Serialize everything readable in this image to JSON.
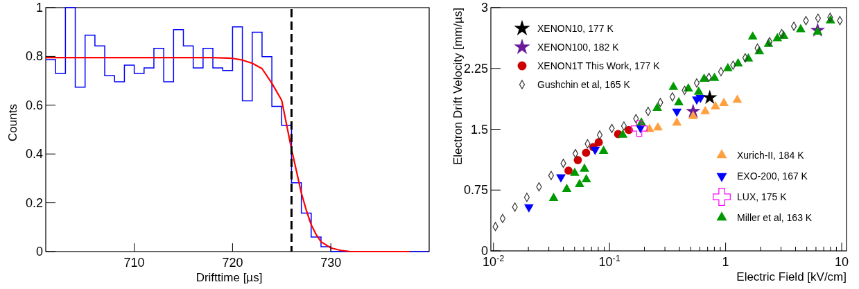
{
  "chart_data": [
    {
      "type": "histogram",
      "xlabel": "Drifttime [µs]",
      "ylabel": "Counts",
      "color": "#0000ff",
      "bins": [
        701,
        702,
        703,
        704,
        705,
        706,
        707,
        708,
        709,
        710,
        711,
        712,
        713,
        714,
        715,
        716,
        717,
        718,
        719,
        720,
        721,
        722,
        723,
        724,
        725,
        726,
        727,
        728,
        729,
        730,
        731,
        732,
        733,
        734,
        735,
        736,
        737,
        738,
        739,
        740
      ],
      "values": [
        0.787,
        0.73,
        1.0,
        0.674,
        0.887,
        0.843,
        0.721,
        0.696,
        0.764,
        0.73,
        0.753,
        0.833,
        0.696,
        0.91,
        0.843,
        0.753,
        0.833,
        0.753,
        0.742,
        0.921,
        0.618,
        0.899,
        0.799,
        0.595,
        0.517,
        0.282,
        0.158,
        0.06,
        0.02,
        0,
        0,
        0,
        0,
        0,
        0,
        0,
        0,
        0,
        0
      ],
      "series": [
        {
          "type": "line",
          "color": "#ff0000",
          "x": [
            701,
            718,
            720,
            721,
            722,
            723,
            724,
            725,
            725.5,
            726,
            726.5,
            727,
            727.5,
            728,
            728.5,
            729,
            730,
            731,
            732,
            738
          ],
          "values": [
            0.795,
            0.795,
            0.792,
            0.785,
            0.772,
            0.75,
            0.69,
            0.62,
            0.52,
            0.42,
            0.33,
            0.24,
            0.17,
            0.11,
            0.07,
            0.04,
            0.015,
            0.005,
            0,
            0
          ]
        }
      ],
      "ref_lines": [
        {
          "axis": "x",
          "value": 726,
          "line_style": "dashed",
          "color": "#000000"
        }
      ],
      "xlim": [
        701,
        740
      ],
      "ylim": [
        0,
        1
      ],
      "xticks": [
        710,
        720,
        730
      ],
      "yticks": [
        0,
        0.2,
        0.4,
        0.6,
        0.8,
        1
      ]
    },
    {
      "type": "scatter",
      "xlabel": "Electric Field [kV/cm]",
      "ylabel": "Electron Drift Velocity [mm/µs]",
      "log": "x",
      "legend": "top left",
      "xlim": [
        0.0095,
        11
      ],
      "ylim": [
        0,
        3
      ],
      "xticks": [
        {
          "value": 0.01,
          "label": "10$^{-2}$"
        },
        {
          "value": 0.02,
          "label": null
        },
        {
          "value": 0.03,
          "label": null
        },
        {
          "value": 0.04,
          "label": null
        },
        {
          "value": 0.05,
          "label": null
        },
        {
          "value": 0.06,
          "label": null
        },
        {
          "value": 0.07,
          "label": null
        },
        {
          "value": 0.08,
          "label": null
        },
        {
          "value": 0.09,
          "label": null
        },
        {
          "value": 0.1,
          "label": "10$^{-1}$"
        },
        {
          "value": 0.2,
          "label": null
        },
        {
          "value": 0.3,
          "label": null
        },
        {
          "value": 0.4,
          "label": null
        },
        {
          "value": 0.5,
          "label": null
        },
        {
          "value": 0.6,
          "label": null
        },
        {
          "value": 0.7,
          "label": null
        },
        {
          "value": 0.8,
          "label": null
        },
        {
          "value": 0.9,
          "label": null
        },
        1,
        {
          "value": 2,
          "label": null
        },
        {
          "value": 3,
          "label": null
        },
        {
          "value": 4,
          "label": null
        },
        {
          "value": 5,
          "label": null
        },
        {
          "value": 6,
          "label": null
        },
        {
          "value": 7,
          "label": null
        },
        {
          "value": 8,
          "label": null
        },
        {
          "value": 9,
          "label": null
        },
        10
      ],
      "yticks": [
        0,
        0.75,
        1.5,
        2.25,
        3
      ],
      "series": [
        {
          "name": "XENON10, 177 K",
          "color": "#000000",
          "marker": "star",
          "x": [
            0.73
          ],
          "values": [
            1.89
          ]
        },
        {
          "name": "XENON100, 182 K",
          "color": "#6a1b9a",
          "marker": "star",
          "x": [
            0.525,
            6.2
          ],
          "values": [
            1.72,
            2.72
          ]
        },
        {
          "name": "XENON1T This Work, 177 K",
          "color": "#cc0000",
          "marker": "circle",
          "x": [
            0.0443,
            0.0533,
            0.0628,
            0.0726,
            0.0807,
            0.1186,
            0.1466
          ],
          "values": [
            0.99,
            1.12,
            1.21,
            1.28,
            1.34,
            1.44,
            1.49
          ]
        },
        {
          "name": "Gushchin et al, 165 K",
          "color": "#333333",
          "marker": "diamond",
          "x": [
            0.0104,
            0.012,
            0.0153,
            0.0194,
            0.0247,
            0.0314,
            0.04,
            0.0508,
            0.0647,
            0.0823,
            0.1047,
            0.133,
            0.169,
            0.215,
            0.274,
            0.348,
            0.443,
            0.564,
            0.718,
            0.912,
            1.16,
            1.476,
            1.88,
            2.39,
            3.04,
            3.87,
            4.92,
            6.25,
            7.95,
            9.64
          ],
          "values": [
            0.3,
            0.4,
            0.54,
            0.66,
            0.79,
            0.93,
            1.08,
            1.2,
            1.32,
            1.43,
            1.51,
            1.54,
            1.63,
            1.72,
            1.83,
            1.9,
            1.98,
            2.07,
            2.14,
            2.21,
            2.29,
            2.38,
            2.5,
            2.58,
            2.68,
            2.77,
            2.84,
            2.87,
            2.88,
            2.84
          ]
        },
        {
          "name": "Xurich-II, 184 K",
          "color": "#ffa040",
          "marker": "triangle",
          "x": [
            0.221,
            0.261,
            0.38,
            0.525,
            0.667,
            0.817,
            0.966,
            1.26
          ],
          "values": [
            1.5,
            1.52,
            1.58,
            1.66,
            1.72,
            1.78,
            1.82,
            1.86
          ]
        },
        {
          "name": "EXO-200, 167 K",
          "color": "#0000ff",
          "marker": "triangle-down",
          "x": [
            0.0202,
            0.0381,
            0.0751,
            0.1846,
            0.38,
            0.564,
            0.607
          ],
          "values": [
            0.54,
            0.91,
            1.25,
            1.52,
            1.72,
            1.87,
            1.89
          ]
        },
        {
          "name": "LUX, 175 K",
          "color": "#ff00ff",
          "marker": "cross",
          "x": [
            0.18
          ],
          "values": [
            1.51
          ]
        },
        {
          "name": "Miller et al, 163 K",
          "color": "#009900",
          "marker": "triangle",
          "x": [
            0.033,
            0.0428,
            0.0501,
            0.0552,
            0.0608,
            0.0631,
            0.0889,
            0.13,
            0.188,
            0.2576,
            0.355,
            0.395,
            0.477,
            0.586,
            0.652,
            0.801,
            1.045,
            1.28,
            1.57,
            1.71,
            1.95,
            2.34,
            2.79,
            3.16,
            4.43,
            6.2,
            8.0
          ],
          "values": [
            0.65,
            0.76,
            0.96,
            0.82,
            1.01,
            0.88,
            1.23,
            1.43,
            1.58,
            1.76,
            2.02,
            1.83,
            2.0,
            1.96,
            2.12,
            2.13,
            2.25,
            2.31,
            2.37,
            2.64,
            2.46,
            2.55,
            2.62,
            2.65,
            2.73,
            2.7,
            2.84
          ]
        }
      ]
    }
  ]
}
